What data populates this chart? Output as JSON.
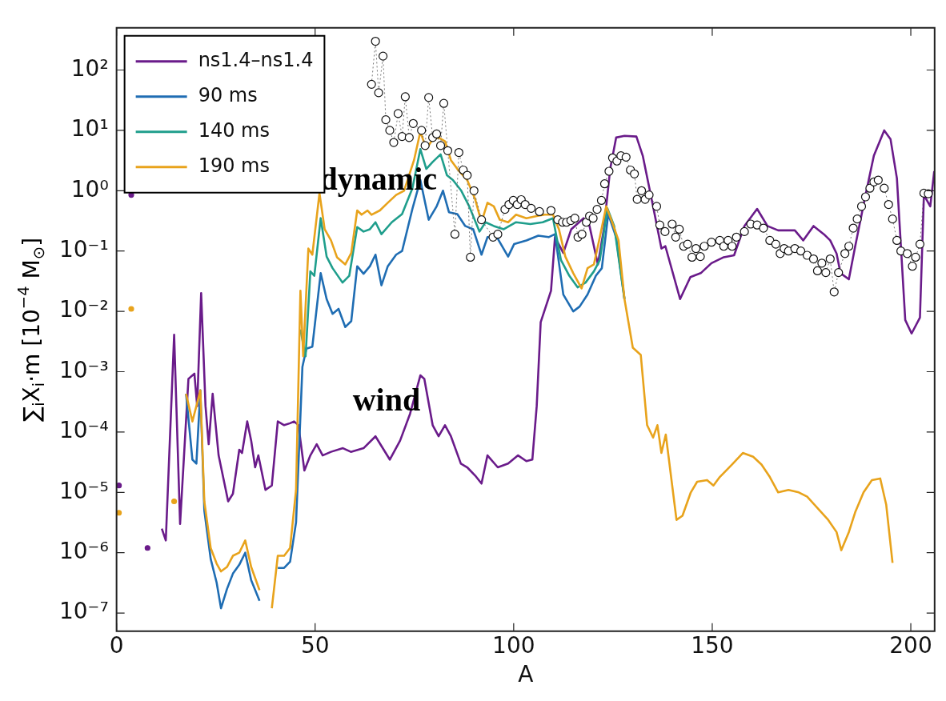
{
  "chart_data": {
    "type": "line",
    "xlabel": "A",
    "ylabel": "∑$_{i}$X$_{i}$·m [10$^{−4}$ M$_{⊙}$]",
    "log": "y",
    "grid": false,
    "legend": "top left",
    "xlim": [
      0,
      206
    ],
    "xticks": [
      0,
      50,
      100,
      150,
      200
    ],
    "ylim": [
      5e-08,
      500
    ],
    "yticks": [
      {
        "value": 1e-07,
        "label": "10⁻⁷"
      },
      {
        "value": 1e-06,
        "label": "10⁻⁶"
      },
      {
        "value": 1e-05,
        "label": "10⁻⁵"
      },
      {
        "value": 0.0001,
        "label": "10⁻⁴"
      },
      {
        "value": 0.001,
        "label": "10⁻³"
      },
      {
        "value": 0.01,
        "label": "10⁻²"
      },
      {
        "value": 0.1,
        "label": "10⁻¹"
      },
      {
        "value": 1,
        "label": "10⁰"
      },
      {
        "value": 10,
        "label": "10¹"
      },
      {
        "value": 100,
        "label": "10²"
      }
    ],
    "annotations": [
      "dynamic",
      "wind"
    ],
    "series": [
      {
        "name": "ns1.4–ns1.4",
        "color": "#6a1b8a",
        "x": [
          0.6,
          2.2,
          3.7,
          4.7,
          7.0,
          7.8,
          8.6,
          10.6,
          11.4,
          12.4,
          14.5,
          16,
          18.1,
          19.6,
          20.3,
          21.3,
          22.4,
          23.2,
          24.2,
          25.7,
          28.1,
          29.3,
          30.9,
          31.6,
          32.9,
          33.9,
          34.9,
          35.7,
          37.5,
          39.1,
          40.6,
          42.2,
          43.7,
          44.7,
          45.8,
          47.3,
          48.8,
          50.4,
          51.9,
          54,
          57,
          59,
          62.2,
          65.2,
          68.8,
          71.4,
          73.9,
          76.5,
          77.5,
          79.6,
          81.1,
          82.7,
          84.2,
          86.7,
          88.3,
          90.3,
          91.9,
          93.4,
          96,
          98.6,
          101.1,
          103.2,
          104.7,
          105.8,
          106.8,
          109.4,
          110.4,
          112.5,
          114.5,
          117.6,
          119.1,
          121.2,
          122.7,
          124.3,
          125.8,
          127.9,
          130.9,
          132.5,
          135.1,
          137.2,
          138.2,
          141.9,
          144.5,
          147.1,
          149.8,
          152.9,
          155.5,
          158.1,
          161.3,
          163.9,
          166.6,
          170.8,
          172.9,
          175.5,
          178.1,
          179.7,
          181.3,
          182.3,
          184.4,
          186,
          188.6,
          190.7,
          193.3,
          194.9,
          196.5,
          198.6,
          200.2,
          202.3,
          203.3,
          204.9,
          205.9
        ],
        "values": [
          1.3e-05,
          null,
          0.85,
          null,
          null,
          1.2e-06,
          null,
          null,
          2.5e-06,
          1.6e-06,
          0.0041,
          3e-06,
          0.00076,
          0.00093,
          0.00027,
          0.02,
          0.00027,
          6.3e-05,
          0.00043,
          4.1e-05,
          7.1e-06,
          9.5e-06,
          5.1e-05,
          4.5e-05,
          0.00015,
          7.2e-05,
          2.6e-05,
          4.1e-05,
          1.1e-05,
          1.3e-05,
          0.00015,
          0.00013,
          0.00014,
          0.00015,
          0.00013,
          2.3e-05,
          4.1e-05,
          6.3e-05,
          4.1e-05,
          4.7e-05,
          5.4e-05,
          4.7e-05,
          5.4e-05,
          8.5e-05,
          3.5e-05,
          7.2e-05,
          0.0002,
          0.00087,
          0.00076,
          0.00013,
          8.5e-05,
          0.00013,
          8.5e-05,
          3e-05,
          2.6e-05,
          1.9e-05,
          1.4e-05,
          4.1e-05,
          2.6e-05,
          3e-05,
          4.1e-05,
          3.3e-05,
          3.5e-05,
          0.00027,
          0.0066,
          0.022,
          0.17,
          0.093,
          0.23,
          0.35,
          0.26,
          0.06,
          0.23,
          2.3,
          7.6,
          8.1,
          7.9,
          3.8,
          0.55,
          0.11,
          0.12,
          0.016,
          0.037,
          0.043,
          0.063,
          0.079,
          0.085,
          0.26,
          0.5,
          0.26,
          0.22,
          0.22,
          0.15,
          0.26,
          0.19,
          0.15,
          0.091,
          0.043,
          0.034,
          0.12,
          0.85,
          3.8,
          10,
          7.1,
          1.6,
          0.0072,
          0.0043,
          0.0079,
          0.85,
          0.55,
          2.1
        ]
      },
      {
        "name": "90 ms",
        "color": "#1f6db3",
        "x": [
          17.5,
          19.1,
          20.1,
          21.1,
          22.1,
          23.7,
          25.2,
          26.3,
          27.8,
          29.3,
          30.9,
          32.4,
          33.9,
          36,
          38,
          39.1,
          40.6,
          42.2,
          43.7,
          45.2,
          46.8,
          47.8,
          49.3,
          51.4,
          52.9,
          54.4,
          55.9,
          57.6,
          59.1,
          60.6,
          62.2,
          63.8,
          65.2,
          66.7,
          68.3,
          70.4,
          71.9,
          74.5,
          76.5,
          78.6,
          80.6,
          82.2,
          83.7,
          85.8,
          87.8,
          89.8,
          91.9,
          93.4,
          96,
          98.6,
          100.1,
          103.2,
          106.2,
          108.8,
          110.4,
          112.5,
          115,
          116.6,
          118.6,
          120.7,
          122.2,
          123.8,
          125.8,
          127.9
        ],
        "values": [
          0.00043,
          3.5e-05,
          3e-05,
          0.00049,
          5e-06,
          7.9e-07,
          3.2e-07,
          1.2e-07,
          2.5e-07,
          4.5e-07,
          6.3e-07,
          1e-06,
          3.5e-07,
          1.6e-07,
          null,
          null,
          5.6e-07,
          5.6e-07,
          7.1e-07,
          3.2e-06,
          0.0012,
          0.0024,
          0.0026,
          0.043,
          0.016,
          0.0091,
          0.011,
          0.0055,
          0.0069,
          0.056,
          0.042,
          0.056,
          0.087,
          0.027,
          0.056,
          0.087,
          0.1,
          0.5,
          1.5,
          0.33,
          0.55,
          1,
          0.44,
          0.41,
          0.26,
          0.23,
          0.087,
          0.17,
          0.16,
          0.081,
          0.13,
          0.15,
          0.18,
          0.17,
          0.19,
          0.019,
          0.01,
          0.012,
          0.019,
          0.039,
          0.052,
          0.41,
          0.17,
          0.016
        ]
      },
      {
        "name": "140 ms",
        "color": "#1f9e8c",
        "x": [
          46.3,
          47.6,
          48.8,
          49.8,
          51.4,
          52.9,
          54.4,
          56.9,
          58.6,
          60.6,
          62.2,
          63.8,
          65.2,
          66.7,
          69.3,
          71.9,
          74.5,
          76.5,
          78,
          79.6,
          81.6,
          83.2,
          84.7,
          86.8,
          88.8,
          91.4,
          92.9,
          95,
          97.5,
          100.6,
          104.2,
          107.3,
          109.9,
          111.9,
          114,
          116.1,
          118.1,
          120.2,
          121.7,
          123.6,
          125.3,
          127.9
        ],
        "values": [
          0.005,
          0.0018,
          0.046,
          0.039,
          0.35,
          0.081,
          0.052,
          0.03,
          0.039,
          0.25,
          0.21,
          0.23,
          0.3,
          0.19,
          0.3,
          0.41,
          1.1,
          4.9,
          2.3,
          3,
          4,
          1.8,
          1.5,
          1,
          0.55,
          0.21,
          0.3,
          0.26,
          0.23,
          0.3,
          0.28,
          0.3,
          0.35,
          0.071,
          0.039,
          0.025,
          0.03,
          0.046,
          0.071,
          0.51,
          0.26,
          0.016
        ]
      },
      {
        "name": "190 ms",
        "color": "#e8a31c",
        "x": [
          0.6,
          2.2,
          3.7,
          4.7,
          13.4,
          14.5,
          16.5,
          17.5,
          19.1,
          20.1,
          21.1,
          22.1,
          23.7,
          25.2,
          26.3,
          27.8,
          29.3,
          30.9,
          32.4,
          33.9,
          36,
          38,
          39.1,
          40.6,
          42.2,
          43.7,
          45.2,
          46.3,
          47,
          48.3,
          49.3,
          51.1,
          52.4,
          54,
          55.5,
          57.6,
          59.1,
          60.6,
          61.7,
          63.2,
          64.2,
          66.3,
          68.3,
          70.4,
          72.4,
          74.9,
          76.5,
          78,
          79.6,
          81.1,
          82.7,
          84.2,
          85.8,
          88.3,
          90.3,
          91.9,
          93.4,
          95,
          96.5,
          98.6,
          100.6,
          103.2,
          105.8,
          107.8,
          109.9,
          111.4,
          113,
          115,
          117.1,
          118.6,
          120.2,
          121.7,
          123.3,
          124.8,
          126.4,
          127.9,
          130,
          132,
          133.6,
          135.1,
          136.2,
          137.2,
          138.3,
          141,
          142.5,
          144.6,
          146.2,
          148.7,
          150.3,
          151.9,
          155,
          157.7,
          160.3,
          162.4,
          164.5,
          166.6,
          169.2,
          171.8,
          173.9,
          176.5,
          179.2,
          181.3,
          182.5,
          184.4,
          186,
          188.1,
          190.2,
          192.3,
          193.8,
          195.4
        ],
        "values": [
          4.6e-06,
          null,
          0.011,
          null,
          null,
          7.1e-06,
          null,
          0.00043,
          0.00015,
          0.00027,
          0.00049,
          7.1e-06,
          1.2e-06,
          6.6e-07,
          4.9e-07,
          5.8e-07,
          8.9e-07,
          1e-06,
          1.6e-06,
          5.8e-07,
          2.4e-07,
          null,
          1.2e-07,
          8.9e-07,
          8.9e-07,
          1.2e-06,
          1.1e-05,
          0.022,
          0.0018,
          0.11,
          0.087,
          0.91,
          0.23,
          0.15,
          0.079,
          0.06,
          0.093,
          0.47,
          0.4,
          0.47,
          0.4,
          0.47,
          0.63,
          0.85,
          1,
          3.2,
          9.5,
          4.9,
          7.1,
          7.6,
          6.6,
          3.2,
          2.3,
          1.5,
          0.72,
          0.3,
          0.63,
          0.55,
          0.33,
          0.3,
          0.4,
          0.35,
          0.38,
          0.4,
          0.4,
          0.23,
          0.081,
          0.043,
          0.024,
          0.052,
          0.06,
          0.17,
          0.55,
          0.3,
          0.15,
          0.016,
          0.0025,
          0.0019,
          0.00013,
          8.1e-05,
          0.00013,
          4.5e-05,
          9.1e-05,
          3.5e-06,
          4.1e-06,
          1e-05,
          1.5e-05,
          1.6e-05,
          1.3e-05,
          1.8e-05,
          2.9e-05,
          4.5e-05,
          3.9e-05,
          2.9e-05,
          1.8e-05,
          1e-05,
          1.1e-05,
          1e-05,
          8.5e-06,
          5.5e-06,
          3.5e-06,
          2.2e-06,
          1.1e-06,
          2.2e-06,
          4.7e-06,
          1e-05,
          1.6e-05,
          1.7e-05,
          6.3e-06,
          6.8e-07
        ]
      },
      {
        "color": "#555555",
        "line_style": "dotted",
        "marker": "circle",
        "x": [
          64.2,
          65.2,
          66,
          67.1,
          67.8,
          68.8,
          69.8,
          70.9,
          71.9,
          72.7,
          73.7,
          74.7,
          76.8,
          77.7,
          78.6,
          79.6,
          80.6,
          81.6,
          82.4,
          83.4,
          85.2,
          86.2,
          87.3,
          88.3,
          89.1,
          90,
          91.9,
          94.8,
          96,
          97.8,
          98.8,
          99.9,
          100.9,
          101.9,
          102.9,
          104.4,
          106.5,
          109.4,
          111.1,
          112.3,
          113.3,
          114.4,
          115.4,
          116.2,
          117.2,
          118.3,
          119.1,
          120,
          121,
          122.1,
          122.9,
          124,
          124.9,
          126,
          127,
          128.3,
          129.4,
          130.4,
          131.1,
          132.2,
          133.1,
          134.1,
          136,
          136.8,
          138.1,
          139.9,
          140.8,
          141.7,
          142.8,
          143.8,
          144.9,
          145.9,
          147,
          148,
          149.8,
          151.9,
          152.9,
          154,
          155,
          156.1,
          158.1,
          159.7,
          161.3,
          162.9,
          164.5,
          166,
          167.1,
          168.1,
          169.2,
          170.8,
          172.3,
          173.9,
          175.5,
          176.5,
          177.6,
          178.6,
          179.7,
          180.7,
          181.8,
          183.4,
          184.4,
          185.5,
          186.5,
          187.6,
          188.6,
          189.7,
          190.7,
          191.8,
          193.3,
          194.4,
          195.4,
          196.5,
          197.5,
          199.1,
          200.4,
          201.2,
          202.3,
          203.3,
          204.4
        ],
        "values": [
          58,
          300,
          42,
          170,
          15,
          10,
          6.3,
          19,
          7.9,
          36,
          7.6,
          13,
          10,
          5.6,
          35,
          7.6,
          8.7,
          5.6,
          28,
          4.6,
          0.19,
          4.3,
          2.2,
          1.8,
          0.079,
          1,
          0.33,
          0.17,
          0.19,
          0.49,
          0.59,
          0.69,
          0.59,
          0.71,
          0.59,
          0.51,
          0.45,
          0.47,
          0.33,
          0.3,
          0.3,
          0.32,
          0.35,
          0.17,
          0.19,
          0.3,
          0.38,
          0.35,
          0.49,
          0.69,
          1.3,
          2.1,
          3.5,
          3.1,
          3.8,
          3.6,
          2.2,
          1.9,
          0.72,
          1,
          0.72,
          0.85,
          0.55,
          0.27,
          0.21,
          0.28,
          0.17,
          0.23,
          0.12,
          0.13,
          0.079,
          0.11,
          0.081,
          0.12,
          0.14,
          0.15,
          0.12,
          0.15,
          0.12,
          0.17,
          0.21,
          0.28,
          0.27,
          0.24,
          0.15,
          0.13,
          0.091,
          0.11,
          0.1,
          0.11,
          0.1,
          0.085,
          0.074,
          0.047,
          0.063,
          0.044,
          0.074,
          0.021,
          0.044,
          0.091,
          0.12,
          0.24,
          0.34,
          0.55,
          0.79,
          1.1,
          1.4,
          1.5,
          1.1,
          0.59,
          0.34,
          0.15,
          0.1,
          0.091,
          0.056,
          0.079,
          0.13,
          0.91,
          0.89
        ]
      }
    ]
  }
}
